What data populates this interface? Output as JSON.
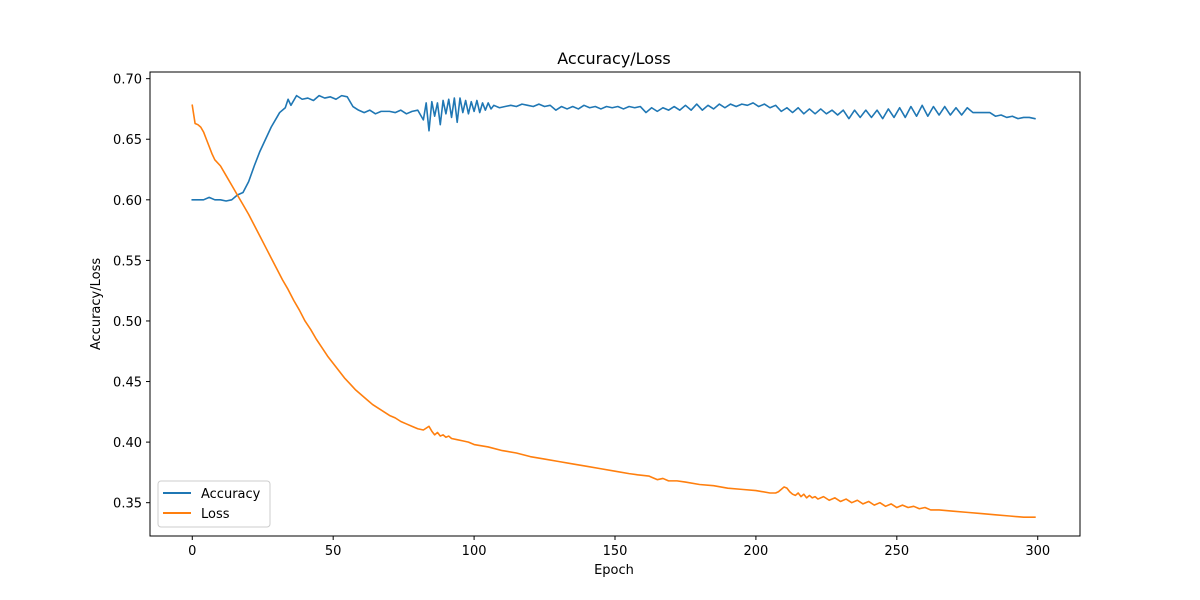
{
  "chart_data": {
    "type": "line",
    "title": "Accuracy/Loss",
    "xlabel": "Epoch",
    "ylabel": "Accuracy/Loss",
    "xlim": [
      -15,
      315
    ],
    "ylim": [
      0.3225,
      0.7055
    ],
    "xticks": [
      0,
      50,
      100,
      150,
      200,
      250,
      300
    ],
    "yticks": [
      0.35,
      0.4,
      0.45,
      0.5,
      0.55,
      0.6,
      0.65,
      0.7
    ],
    "ytick_labels": [
      "0.35",
      "0.40",
      "0.45",
      "0.50",
      "0.55",
      "0.60",
      "0.65",
      "0.70"
    ],
    "grid": false,
    "legend_position": "lower-left",
    "series": [
      {
        "name": "Accuracy",
        "color": "#1f77b4",
        "points": [
          [
            0,
            0.6
          ],
          [
            4,
            0.6
          ],
          [
            6,
            0.602
          ],
          [
            8,
            0.6
          ],
          [
            10,
            0.6
          ],
          [
            12,
            0.599
          ],
          [
            14,
            0.6
          ],
          [
            16,
            0.604
          ],
          [
            18,
            0.606
          ],
          [
            20,
            0.615
          ],
          [
            22,
            0.628
          ],
          [
            24,
            0.64
          ],
          [
            26,
            0.65
          ],
          [
            28,
            0.66
          ],
          [
            30,
            0.668
          ],
          [
            31,
            0.672
          ],
          [
            33,
            0.676
          ],
          [
            34,
            0.683
          ],
          [
            35,
            0.678
          ],
          [
            37,
            0.686
          ],
          [
            39,
            0.683
          ],
          [
            41,
            0.684
          ],
          [
            43,
            0.682
          ],
          [
            45,
            0.686
          ],
          [
            47,
            0.684
          ],
          [
            49,
            0.685
          ],
          [
            51,
            0.683
          ],
          [
            53,
            0.686
          ],
          [
            55,
            0.685
          ],
          [
            57,
            0.677
          ],
          [
            59,
            0.674
          ],
          [
            61,
            0.672
          ],
          [
            63,
            0.674
          ],
          [
            65,
            0.671
          ],
          [
            67,
            0.673
          ],
          [
            70,
            0.673
          ],
          [
            72,
            0.672
          ],
          [
            74,
            0.674
          ],
          [
            76,
            0.671
          ],
          [
            78,
            0.673
          ],
          [
            80,
            0.674
          ],
          [
            82,
            0.666
          ],
          [
            83,
            0.68
          ],
          [
            84,
            0.657
          ],
          [
            85,
            0.681
          ],
          [
            86,
            0.669
          ],
          [
            87,
            0.68
          ],
          [
            88,
            0.662
          ],
          [
            89,
            0.682
          ],
          [
            90,
            0.671
          ],
          [
            91,
            0.683
          ],
          [
            92,
            0.668
          ],
          [
            93,
            0.684
          ],
          [
            94,
            0.664
          ],
          [
            95,
            0.684
          ],
          [
            96,
            0.672
          ],
          [
            97,
            0.682
          ],
          [
            98,
            0.671
          ],
          [
            99,
            0.681
          ],
          [
            100,
            0.673
          ],
          [
            101,
            0.682
          ],
          [
            102,
            0.672
          ],
          [
            103,
            0.68
          ],
          [
            104,
            0.674
          ],
          [
            105,
            0.68
          ],
          [
            106,
            0.675
          ],
          [
            107,
            0.678
          ],
          [
            109,
            0.676
          ],
          [
            111,
            0.677
          ],
          [
            113,
            0.678
          ],
          [
            115,
            0.677
          ],
          [
            117,
            0.679
          ],
          [
            119,
            0.678
          ],
          [
            121,
            0.677
          ],
          [
            123,
            0.679
          ],
          [
            125,
            0.677
          ],
          [
            127,
            0.678
          ],
          [
            129,
            0.674
          ],
          [
            131,
            0.677
          ],
          [
            133,
            0.675
          ],
          [
            135,
            0.677
          ],
          [
            137,
            0.675
          ],
          [
            139,
            0.678
          ],
          [
            141,
            0.676
          ],
          [
            143,
            0.677
          ],
          [
            145,
            0.675
          ],
          [
            147,
            0.677
          ],
          [
            149,
            0.676
          ],
          [
            151,
            0.677
          ],
          [
            153,
            0.675
          ],
          [
            155,
            0.677
          ],
          [
            157,
            0.676
          ],
          [
            159,
            0.677
          ],
          [
            161,
            0.672
          ],
          [
            163,
            0.676
          ],
          [
            165,
            0.673
          ],
          [
            167,
            0.676
          ],
          [
            169,
            0.674
          ],
          [
            171,
            0.677
          ],
          [
            173,
            0.674
          ],
          [
            175,
            0.678
          ],
          [
            177,
            0.674
          ],
          [
            179,
            0.679
          ],
          [
            181,
            0.674
          ],
          [
            183,
            0.678
          ],
          [
            185,
            0.675
          ],
          [
            187,
            0.679
          ],
          [
            189,
            0.676
          ],
          [
            191,
            0.679
          ],
          [
            193,
            0.677
          ],
          [
            195,
            0.679
          ],
          [
            197,
            0.678
          ],
          [
            199,
            0.68
          ],
          [
            201,
            0.677
          ],
          [
            203,
            0.679
          ],
          [
            205,
            0.676
          ],
          [
            207,
            0.678
          ],
          [
            209,
            0.673
          ],
          [
            211,
            0.676
          ],
          [
            213,
            0.672
          ],
          [
            215,
            0.676
          ],
          [
            217,
            0.671
          ],
          [
            219,
            0.675
          ],
          [
            221,
            0.671
          ],
          [
            223,
            0.675
          ],
          [
            225,
            0.671
          ],
          [
            227,
            0.674
          ],
          [
            229,
            0.67
          ],
          [
            231,
            0.674
          ],
          [
            233,
            0.667
          ],
          [
            235,
            0.674
          ],
          [
            237,
            0.668
          ],
          [
            239,
            0.674
          ],
          [
            241,
            0.668
          ],
          [
            243,
            0.674
          ],
          [
            245,
            0.667
          ],
          [
            247,
            0.675
          ],
          [
            249,
            0.668
          ],
          [
            251,
            0.676
          ],
          [
            253,
            0.668
          ],
          [
            255,
            0.677
          ],
          [
            257,
            0.669
          ],
          [
            259,
            0.678
          ],
          [
            261,
            0.669
          ],
          [
            263,
            0.677
          ],
          [
            265,
            0.67
          ],
          [
            267,
            0.677
          ],
          [
            269,
            0.67
          ],
          [
            271,
            0.676
          ],
          [
            273,
            0.67
          ],
          [
            275,
            0.676
          ],
          [
            277,
            0.672
          ],
          [
            279,
            0.672
          ],
          [
            281,
            0.672
          ],
          [
            283,
            0.672
          ],
          [
            285,
            0.669
          ],
          [
            287,
            0.67
          ],
          [
            289,
            0.668
          ],
          [
            291,
            0.669
          ],
          [
            293,
            0.667
          ],
          [
            295,
            0.668
          ],
          [
            297,
            0.668
          ],
          [
            299,
            0.667
          ]
        ]
      },
      {
        "name": "Loss",
        "color": "#ff7f0e",
        "points": [
          [
            0,
            0.678
          ],
          [
            1,
            0.663
          ],
          [
            2,
            0.662
          ],
          [
            3,
            0.66
          ],
          [
            4,
            0.656
          ],
          [
            5,
            0.65
          ],
          [
            6,
            0.644
          ],
          [
            7,
            0.638
          ],
          [
            8,
            0.633
          ],
          [
            10,
            0.628
          ],
          [
            12,
            0.62
          ],
          [
            14,
            0.612
          ],
          [
            16,
            0.604
          ],
          [
            18,
            0.596
          ],
          [
            20,
            0.588
          ],
          [
            22,
            0.579
          ],
          [
            24,
            0.57
          ],
          [
            26,
            0.561
          ],
          [
            28,
            0.552
          ],
          [
            30,
            0.543
          ],
          [
            32,
            0.534
          ],
          [
            34,
            0.526
          ],
          [
            36,
            0.517
          ],
          [
            38,
            0.509
          ],
          [
            40,
            0.5
          ],
          [
            42,
            0.493
          ],
          [
            44,
            0.485
          ],
          [
            46,
            0.478
          ],
          [
            48,
            0.471
          ],
          [
            50,
            0.465
          ],
          [
            52,
            0.459
          ],
          [
            54,
            0.453
          ],
          [
            56,
            0.448
          ],
          [
            58,
            0.443
          ],
          [
            60,
            0.439
          ],
          [
            62,
            0.435
          ],
          [
            64,
            0.431
          ],
          [
            66,
            0.428
          ],
          [
            68,
            0.425
          ],
          [
            70,
            0.422
          ],
          [
            72,
            0.42
          ],
          [
            74,
            0.417
          ],
          [
            76,
            0.415
          ],
          [
            78,
            0.413
          ],
          [
            80,
            0.411
          ],
          [
            82,
            0.41
          ],
          [
            84,
            0.413
          ],
          [
            85,
            0.409
          ],
          [
            86,
            0.406
          ],
          [
            87,
            0.408
          ],
          [
            88,
            0.405
          ],
          [
            89,
            0.406
          ],
          [
            90,
            0.404
          ],
          [
            91,
            0.405
          ],
          [
            92,
            0.403
          ],
          [
            94,
            0.402
          ],
          [
            96,
            0.401
          ],
          [
            98,
            0.4
          ],
          [
            100,
            0.398
          ],
          [
            105,
            0.396
          ],
          [
            110,
            0.393
          ],
          [
            115,
            0.391
          ],
          [
            120,
            0.388
          ],
          [
            125,
            0.386
          ],
          [
            130,
            0.384
          ],
          [
            135,
            0.382
          ],
          [
            140,
            0.38
          ],
          [
            145,
            0.378
          ],
          [
            150,
            0.376
          ],
          [
            155,
            0.374
          ],
          [
            158,
            0.373
          ],
          [
            162,
            0.372
          ],
          [
            163,
            0.371
          ],
          [
            165,
            0.369
          ],
          [
            167,
            0.37
          ],
          [
            169,
            0.368
          ],
          [
            172,
            0.368
          ],
          [
            175,
            0.367
          ],
          [
            180,
            0.365
          ],
          [
            185,
            0.364
          ],
          [
            190,
            0.362
          ],
          [
            195,
            0.361
          ],
          [
            200,
            0.36
          ],
          [
            205,
            0.358
          ],
          [
            207,
            0.358
          ],
          [
            208,
            0.359
          ],
          [
            209,
            0.361
          ],
          [
            210,
            0.363
          ],
          [
            211,
            0.362
          ],
          [
            212,
            0.359
          ],
          [
            213,
            0.357
          ],
          [
            214,
            0.356
          ],
          [
            215,
            0.358
          ],
          [
            216,
            0.355
          ],
          [
            217,
            0.357
          ],
          [
            218,
            0.354
          ],
          [
            219,
            0.356
          ],
          [
            220,
            0.354
          ],
          [
            221,
            0.355
          ],
          [
            222,
            0.353
          ],
          [
            224,
            0.355
          ],
          [
            226,
            0.352
          ],
          [
            228,
            0.354
          ],
          [
            230,
            0.351
          ],
          [
            232,
            0.353
          ],
          [
            234,
            0.35
          ],
          [
            236,
            0.352
          ],
          [
            238,
            0.349
          ],
          [
            240,
            0.351
          ],
          [
            242,
            0.348
          ],
          [
            244,
            0.35
          ],
          [
            246,
            0.347
          ],
          [
            248,
            0.349
          ],
          [
            250,
            0.346
          ],
          [
            252,
            0.348
          ],
          [
            254,
            0.346
          ],
          [
            256,
            0.347
          ],
          [
            258,
            0.345
          ],
          [
            260,
            0.346
          ],
          [
            262,
            0.344
          ],
          [
            265,
            0.344
          ],
          [
            270,
            0.343
          ],
          [
            275,
            0.342
          ],
          [
            280,
            0.341
          ],
          [
            285,
            0.34
          ],
          [
            290,
            0.339
          ],
          [
            295,
            0.338
          ],
          [
            299,
            0.338
          ]
        ]
      }
    ]
  }
}
